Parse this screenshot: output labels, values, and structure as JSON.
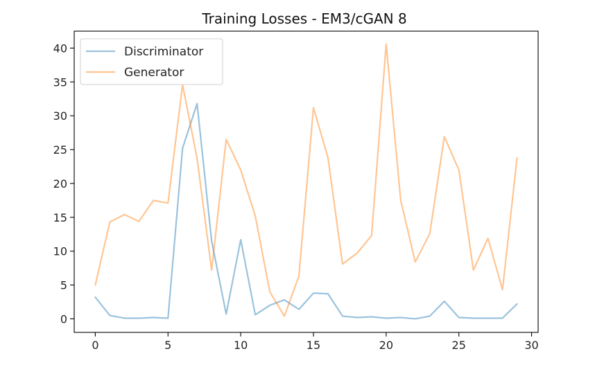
{
  "chart_data": {
    "type": "line",
    "title": "Training Losses - EM3/cGAN 8",
    "xlabel": "",
    "ylabel": "",
    "xlim": [
      -1.45,
      30.45
    ],
    "ylim": [
      -2.0,
      42.5
    ],
    "x_ticks": [
      0,
      5,
      10,
      15,
      20,
      25,
      30
    ],
    "x_tick_labels": [
      "0",
      "5",
      "10",
      "15",
      "20",
      "25",
      "30"
    ],
    "y_ticks": [
      0,
      5,
      10,
      15,
      20,
      25,
      30,
      35,
      40
    ],
    "y_tick_labels": [
      "0",
      "5",
      "10",
      "15",
      "20",
      "25",
      "30",
      "35",
      "40"
    ],
    "grid": false,
    "legend_position": "top-left",
    "x": [
      0,
      1,
      2,
      3,
      4,
      5,
      6,
      7,
      8,
      9,
      10,
      11,
      12,
      13,
      14,
      15,
      16,
      17,
      18,
      19,
      20,
      21,
      22,
      23,
      24,
      25,
      26,
      27,
      28,
      29
    ],
    "series": [
      {
        "name": "Discriminator",
        "color": "#1f77b4",
        "opacity": 0.45,
        "values": [
          3.2,
          0.5,
          0.1,
          0.1,
          0.2,
          0.1,
          25.2,
          31.8,
          11.5,
          0.7,
          11.7,
          0.6,
          2.0,
          2.8,
          1.4,
          3.8,
          3.7,
          0.4,
          0.2,
          0.3,
          0.1,
          0.2,
          0.0,
          0.4,
          2.6,
          0.2,
          0.1,
          0.1,
          0.1,
          2.2
        ]
      },
      {
        "name": "Generator",
        "color": "#ff7f0e",
        "opacity": 0.45,
        "values": [
          5.0,
          14.3,
          15.4,
          14.4,
          17.5,
          17.1,
          34.6,
          23.7,
          7.2,
          26.5,
          22.0,
          15.2,
          4.0,
          0.4,
          6.3,
          31.2,
          23.8,
          8.1,
          9.7,
          12.3,
          40.6,
          17.5,
          8.4,
          12.6,
          26.9,
          22.0,
          7.2,
          11.9,
          4.3,
          23.8
        ]
      }
    ]
  }
}
